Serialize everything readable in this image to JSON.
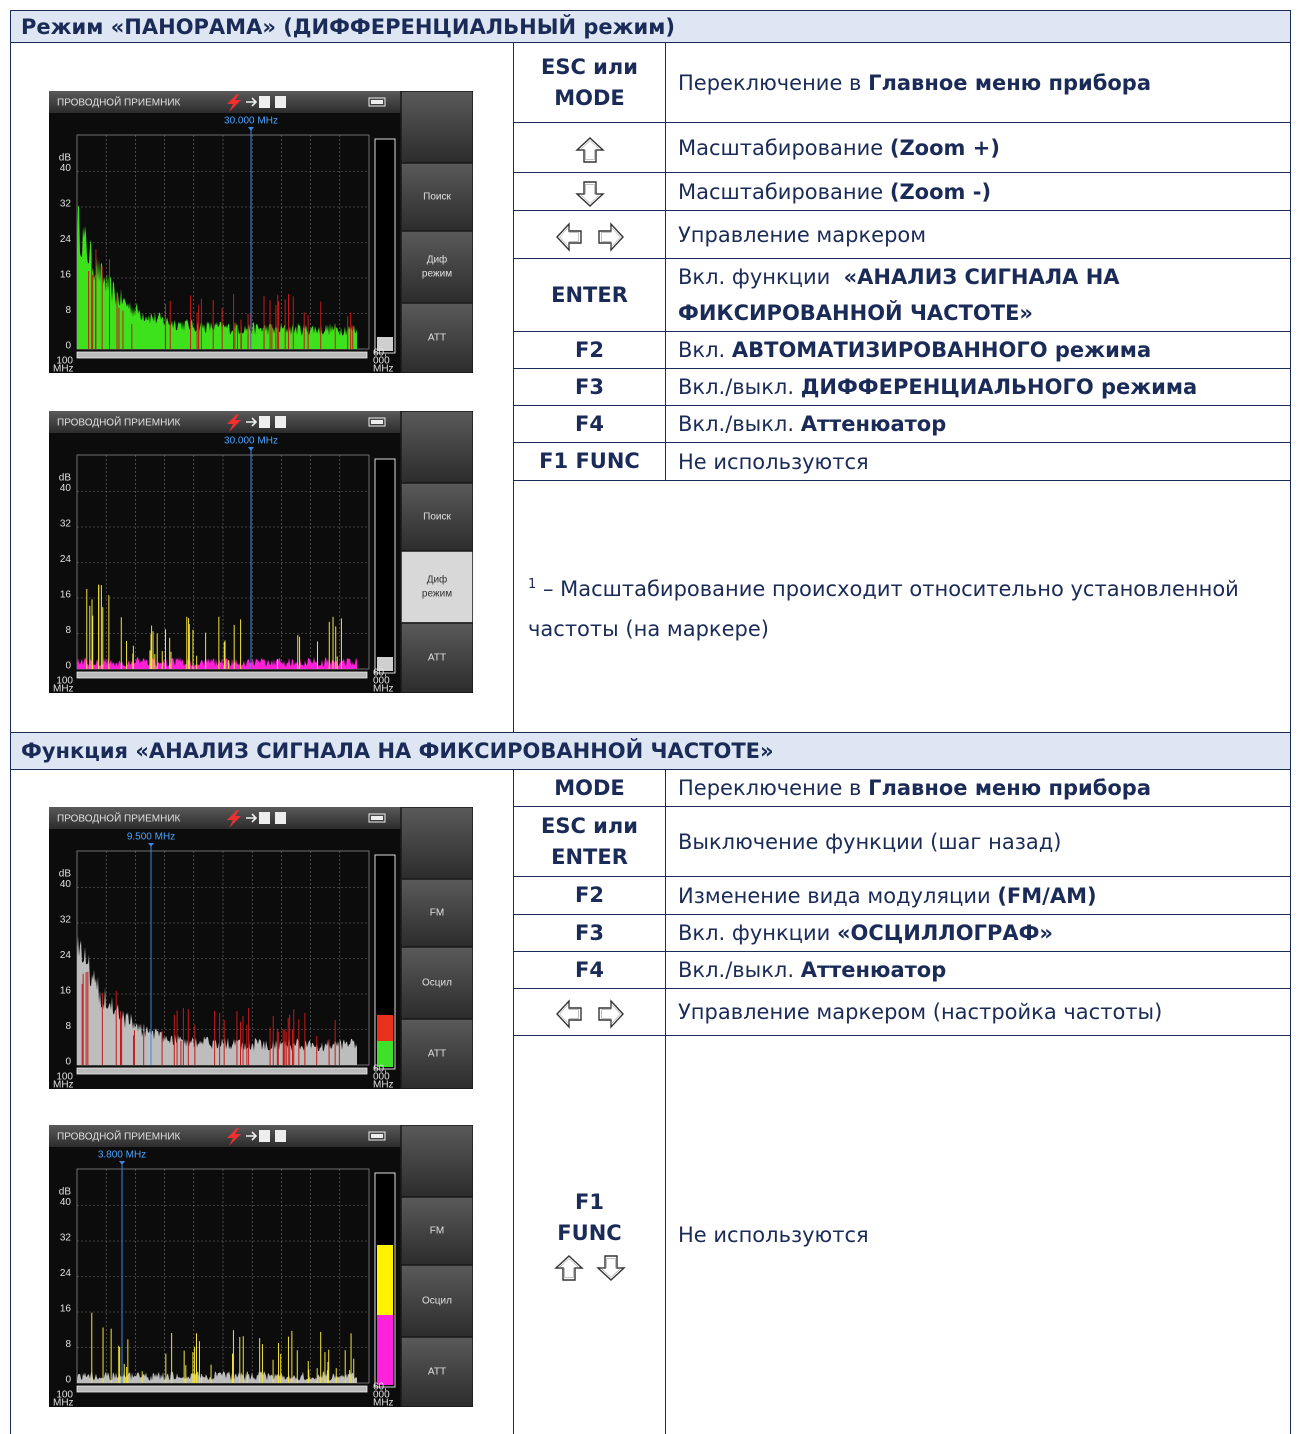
{
  "screen_common": {
    "header": "ПРОВОДНОЙ ПРИЕМНИК",
    "y_unit": "dB",
    "y_labels": [
      "40",
      "32",
      "24",
      "16",
      "8",
      "0"
    ],
    "x_left": [
      "100",
      "MHz"
    ],
    "x_right": [
      "60,",
      "000",
      "MHz"
    ]
  },
  "sections": [
    {
      "title": "Режим «ПАНОРАМА» (ДИФФЕРЕНЦИАЛЬНЫЙ режим)",
      "screens": [
        {
          "marker": "30.000 MHz",
          "buttons": [
            [
              "Поиск"
            ],
            [
              "Диф",
              "режим"
            ],
            [
              "ATT"
            ]
          ],
          "trace": "#3de21c",
          "peaks": "#c41a1a",
          "level": [
            "#cfcfcf"
          ]
        },
        {
          "marker": "30.000 MHz",
          "buttons": [
            [
              "Поиск"
            ],
            [
              "Диф",
              "режим"
            ],
            [
              "ATT"
            ]
          ],
          "active": 1,
          "trace": "#ff1fd8",
          "peaks": "#f2e43a",
          "level": [
            "#cfcfcf"
          ]
        }
      ],
      "rows": [
        {
          "key": [
            "ESC или",
            "MODE"
          ],
          "desc": [
            {
              "text": "Переключение в "
            },
            {
              "text": "Главное меню прибора",
              "bold": true
            }
          ]
        },
        {
          "icons": [
            "up"
          ],
          "desc": [
            {
              "text": "Масштабирование "
            },
            {
              "text": "(Zoom +)",
              "bold": true
            }
          ]
        },
        {
          "icons": [
            "down"
          ],
          "desc": [
            {
              "text": "Масштабирование "
            },
            {
              "text": "(Zoom -)",
              "bold": true
            }
          ]
        },
        {
          "icons": [
            "left",
            "right"
          ],
          "desc": [
            {
              "text": "Управление маркером"
            }
          ]
        },
        {
          "key": [
            "ENTER"
          ],
          "desc": [
            {
              "text": "Вкл. функции  "
            },
            {
              "text": "«АНАЛИЗ СИГНАЛА НА ФИКСИРОВАННОЙ ЧАСТОТЕ»",
              "bold": true
            }
          ]
        },
        {
          "key": [
            "F2"
          ],
          "desc": [
            {
              "text": "Вкл. "
            },
            {
              "text": "АВТОМАТИЗИРОВАННОГО режима",
              "bold": true
            }
          ]
        },
        {
          "key": [
            "F3"
          ],
          "desc": [
            {
              "text": "Вкл./выкл. "
            },
            {
              "text": "ДИФФЕРЕНЦИАЛЬНОГО режима",
              "bold": true
            }
          ]
        },
        {
          "key": [
            "F4"
          ],
          "desc": [
            {
              "text": "Вкл./выкл. "
            },
            {
              "text": "Аттенюатор",
              "bold": true
            }
          ]
        },
        {
          "key": [
            "F1 FUNC"
          ],
          "desc": [
            {
              "text": "Не используются"
            }
          ]
        }
      ],
      "note": {
        "sup": "1",
        "text": " – Масштабирование происходит относительно установленной частоты (на маркере)"
      }
    },
    {
      "title": "Функция «АНАЛИЗ СИГНАЛА НА ФИКСИРОВАННОЙ ЧАСТОТЕ»",
      "screens": [
        {
          "marker": "9.500 MHz",
          "buttons": [
            [
              "FM"
            ],
            [
              "Осцил"
            ],
            [
              "ATT"
            ]
          ],
          "trace": "#bdbdbd",
          "peaks": "#c41a1a",
          "level": [
            "#3ee02a",
            "#e8321e"
          ]
        },
        {
          "marker": "3.800 MHz",
          "buttons": [
            [
              "FM"
            ],
            [
              "Осцил"
            ],
            [
              "ATT"
            ]
          ],
          "trace": "#bdbdbd",
          "peaks": "#f2e43a",
          "level": [
            "#ff22dd",
            "#fff200"
          ]
        }
      ],
      "rows": [
        {
          "key": [
            "MODE"
          ],
          "desc": [
            {
              "text": "Переключение в "
            },
            {
              "text": "Главное меню прибора",
              "bold": true
            }
          ]
        },
        {
          "key": [
            "ESC или",
            "ENTER"
          ],
          "desc": [
            {
              "text": "Выключение функции (шаг назад)"
            }
          ]
        },
        {
          "key": [
            "F2"
          ],
          "desc": [
            {
              "text": "Изменение вида модуляции "
            },
            {
              "text": "(FM/AM)",
              "bold": true
            }
          ]
        },
        {
          "key": [
            "F3"
          ],
          "desc": [
            {
              "text": "Вкл. функции "
            },
            {
              "text": "«ОСЦИЛЛОГРАФ»",
              "bold": true
            }
          ]
        },
        {
          "key": [
            "F4"
          ],
          "desc": [
            {
              "text": "Вкл./выкл. "
            },
            {
              "text": "Аттенюатор",
              "bold": true
            }
          ]
        },
        {
          "icons": [
            "left",
            "right"
          ],
          "desc": [
            {
              "text": "Управление маркером (настройка частоты)"
            }
          ]
        },
        {
          "key": [
            "F1",
            "FUNC"
          ],
          "icons": [
            "up",
            "down"
          ],
          "desc": [
            {
              "text": "Не используются"
            }
          ]
        }
      ]
    }
  ]
}
